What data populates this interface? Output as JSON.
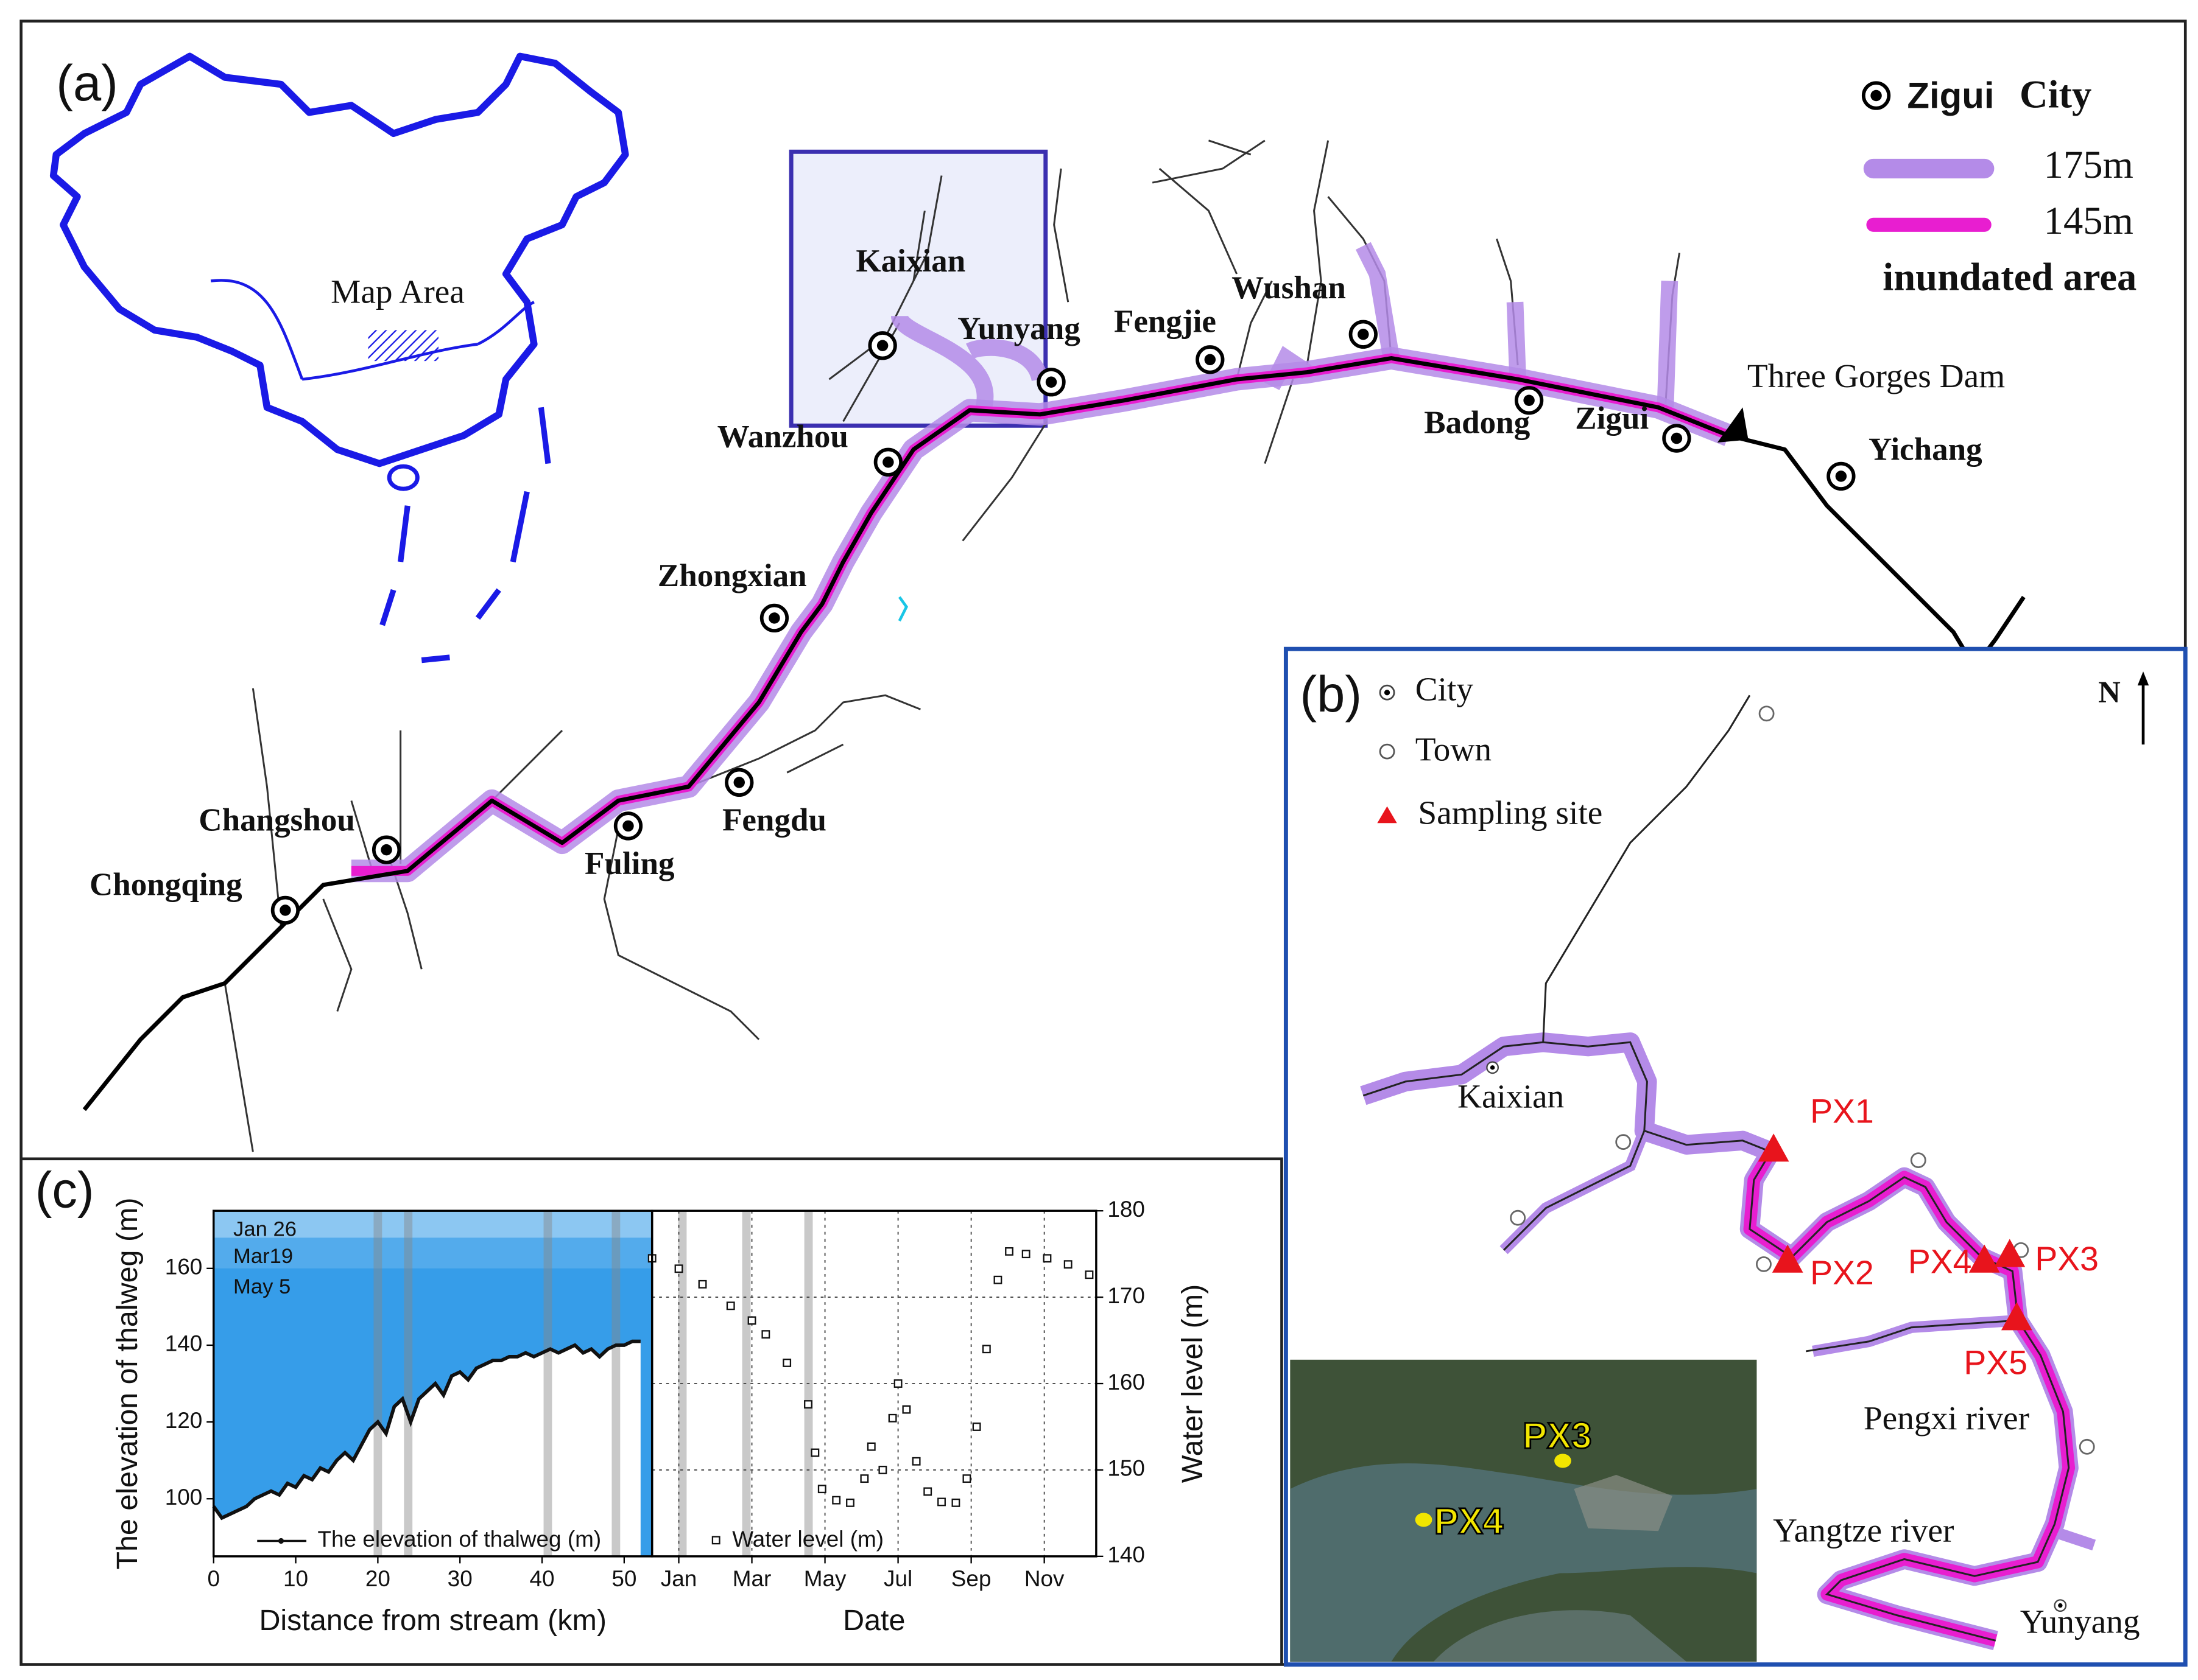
{
  "map_a": {
    "panel_label": "(a)",
    "inset_label": "Map Area",
    "cities": [
      "Chongqing",
      "Changshou",
      "Fuling",
      "Fengdu",
      "Zhongxian",
      "Wanzhou",
      "Kaixian",
      "Yunyang",
      "Fengjie",
      "Wushan",
      "Badong",
      "Zigui",
      "Yichang"
    ],
    "dam": "Three Gorges Dam",
    "legend": {
      "city_example": "Zigui",
      "city": "City",
      "level_175": "175m",
      "level_145": "145m",
      "area": "inundated area"
    }
  },
  "map_b": {
    "panel_label": "(b)",
    "north": "N",
    "legend": {
      "city": "City",
      "town": "Town",
      "site": "Sampling site"
    },
    "places": [
      "Kaixian",
      "Pengxi river",
      "Yangtze river",
      "Yunyang"
    ],
    "sites": [
      "PX1",
      "PX2",
      "PX3",
      "PX4",
      "PX5"
    ],
    "photo_labels": [
      "PX3",
      "PX4"
    ]
  },
  "panel_c": {
    "panel_label": "(c)"
  },
  "chart_data": [
    {
      "type": "line",
      "x_label": "Distance from stream (km)",
      "y_label": "The elevation of thalweg (m)",
      "xlim": [
        0,
        53.4
      ],
      "ylim": [
        85,
        175
      ],
      "xticks": [
        0,
        10,
        20,
        30,
        40,
        50
      ],
      "yticks": [
        100,
        120,
        140,
        160
      ],
      "x": [
        0,
        1,
        2,
        3,
        4,
        5,
        6,
        7,
        8,
        9,
        10,
        11,
        12,
        13,
        14,
        15,
        16,
        17,
        18,
        19,
        20,
        21,
        22,
        23,
        24,
        25,
        26,
        27,
        28,
        29,
        30,
        31,
        32,
        33,
        34,
        35,
        36,
        37,
        38,
        39,
        40,
        41,
        42,
        43,
        44,
        45,
        46,
        47,
        48,
        49,
        50,
        51,
        52
      ],
      "series": [
        {
          "name": "The elevation of thalweg (m)",
          "color": "#111111",
          "values": [
            98,
            95,
            96,
            97,
            98,
            100,
            101,
            102,
            101,
            104,
            103,
            106,
            105,
            108,
            107,
            110,
            112,
            110,
            114,
            118,
            120,
            117,
            124,
            126,
            120,
            126,
            128,
            130,
            127,
            132,
            133,
            131,
            134,
            135,
            136,
            136,
            137,
            137,
            138,
            137,
            138,
            139,
            138,
            139,
            140,
            138,
            139,
            137,
            139,
            140,
            140,
            141,
            141
          ]
        }
      ],
      "water_levels": [
        {
          "label": "Jan 26",
          "value": 175
        },
        {
          "label": "Mar19",
          "value": 168
        },
        {
          "label": "May 5",
          "value": 160
        }
      ],
      "water_color": "#1a8fe6",
      "highlight_x": [
        20,
        23.7,
        40.7,
        49
      ]
    },
    {
      "type": "scatter",
      "x_label": "Date",
      "y_label": "Water level (m)",
      "grid": true,
      "xlim": [
        0.27,
        12.42
      ],
      "xticks": [
        {
          "value": 1,
          "label": "Jan"
        },
        {
          "value": 3,
          "label": "Mar"
        },
        {
          "value": 5,
          "label": "May"
        },
        {
          "value": 7,
          "label": "Jul"
        },
        {
          "value": 9,
          "label": "Sep"
        },
        {
          "value": 11,
          "label": "Nov"
        }
      ],
      "y2lim": [
        140,
        180
      ],
      "y2ticks": [
        140,
        150,
        160,
        170,
        180
      ],
      "x": [
        0.27,
        1,
        1.65,
        2.42,
        3,
        3.38,
        3.96,
        4.54,
        4.73,
        4.92,
        5.31,
        5.69,
        6.08,
        6.27,
        6.58,
        6.85,
        7,
        7.23,
        7.5,
        7.81,
        8.19,
        8.58,
        8.88,
        9.15,
        9.42,
        9.73,
        10.04,
        10.5,
        11.08,
        11.65,
        12.23
      ],
      "series": [
        {
          "name": "Water level (m)",
          "color": "#111111",
          "axis": "y2",
          "values": [
            174.5,
            173.3,
            171.5,
            169,
            167.3,
            165.7,
            162.4,
            157.6,
            152,
            147.8,
            146.5,
            146.2,
            149,
            152.7,
            150,
            156,
            160,
            157,
            151,
            147.5,
            146.3,
            146.2,
            149,
            155,
            164,
            172,
            175.3,
            175,
            174.5,
            173.8,
            172.6
          ]
        }
      ],
      "highlight_x": [
        1.1,
        2.85,
        4.55
      ]
    }
  ]
}
